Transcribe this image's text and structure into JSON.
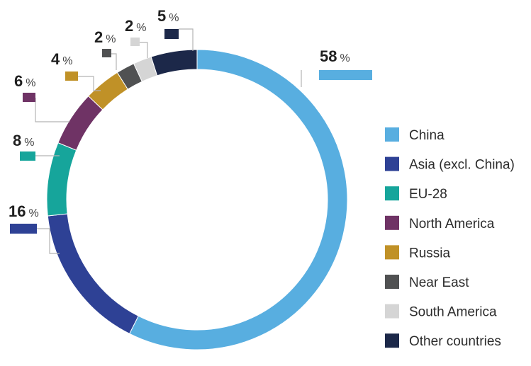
{
  "chart_data": {
    "type": "donut",
    "unit": "%",
    "legend_position": "right",
    "series": [
      {
        "name": "China",
        "value": 58,
        "color": "#58aee0"
      },
      {
        "name": "Asia (excl. China)",
        "value": 16,
        "color": "#2e4195"
      },
      {
        "name": "EU-28",
        "value": 8,
        "color": "#16a59b"
      },
      {
        "name": "North America",
        "value": 6,
        "color": "#6f3365"
      },
      {
        "name": "Russia",
        "value": 4,
        "color": "#c09127"
      },
      {
        "name": "Near East",
        "value": 2,
        "color": "#505152"
      },
      {
        "name": "South America",
        "value": 2,
        "color": "#d5d5d5"
      },
      {
        "name": "Other countries",
        "value": 5,
        "color": "#1c2849"
      }
    ]
  }
}
